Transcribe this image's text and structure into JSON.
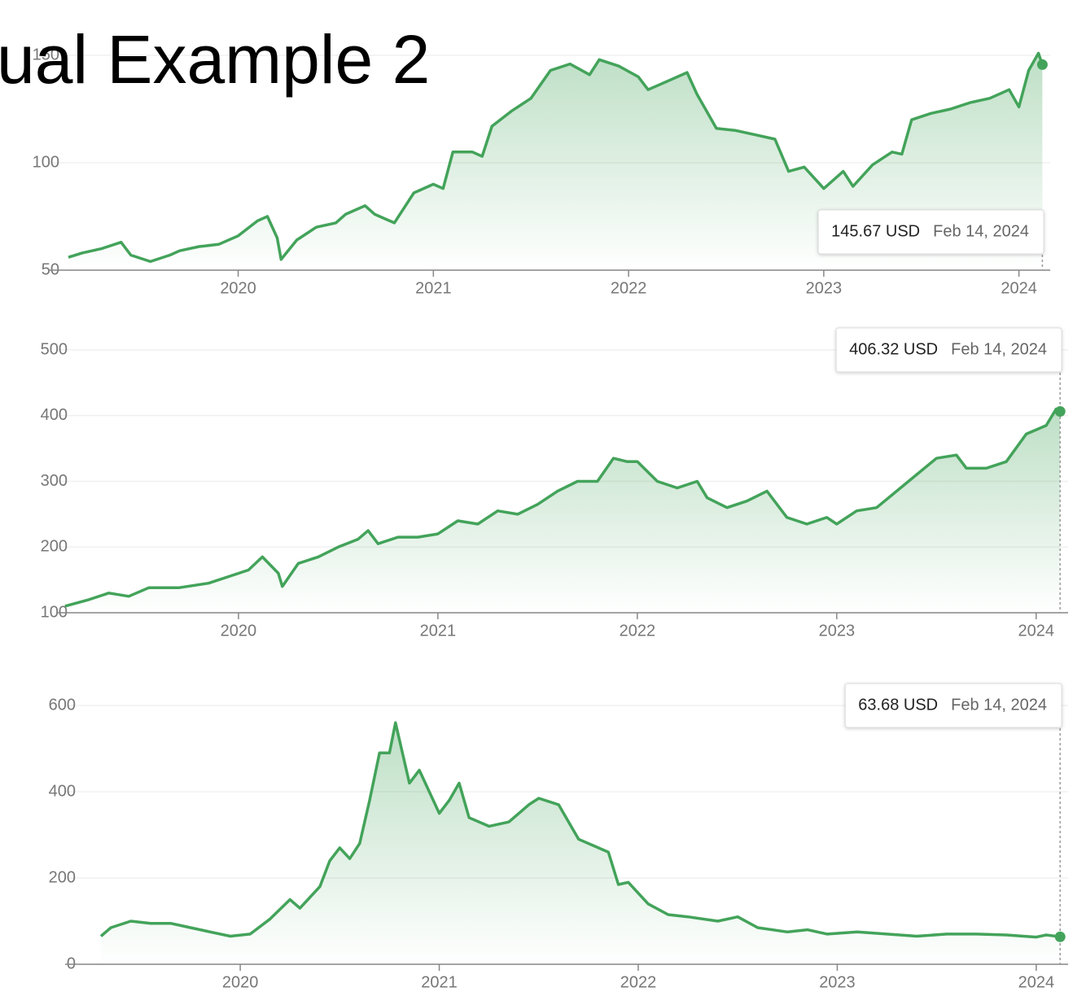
{
  "title": "ual Example 2",
  "chart_data": [
    {
      "type": "line",
      "color": "#43a35a",
      "grid": true,
      "x": [
        2019.13,
        2019.2,
        2019.3,
        2019.4,
        2019.45,
        2019.55,
        2019.65,
        2019.7,
        2019.8,
        2019.9,
        2020.0,
        2020.1,
        2020.15,
        2020.2,
        2020.22,
        2020.3,
        2020.4,
        2020.5,
        2020.55,
        2020.65,
        2020.7,
        2020.8,
        2020.9,
        2021.0,
        2021.05,
        2021.1,
        2021.2,
        2021.25,
        2021.3,
        2021.4,
        2021.5,
        2021.6,
        2021.7,
        2021.8,
        2021.85,
        2021.95,
        2022.05,
        2022.1,
        2022.2,
        2022.3,
        2022.35,
        2022.45,
        2022.55,
        2022.65,
        2022.75,
        2022.82,
        2022.9,
        2023.0,
        2023.1,
        2023.15,
        2023.25,
        2023.35,
        2023.4,
        2023.45,
        2023.55,
        2023.65,
        2023.75,
        2023.85,
        2023.95,
        2024.0,
        2024.05,
        2024.1,
        2024.12
      ],
      "values": [
        56,
        58,
        60,
        63,
        57,
        54,
        57,
        59,
        61,
        62,
        66,
        73,
        75,
        65,
        55,
        64,
        70,
        72,
        76,
        80,
        76,
        72,
        86,
        90,
        88,
        105,
        105,
        103,
        117,
        124,
        130,
        143,
        146,
        141,
        148,
        145,
        140,
        134,
        138,
        142,
        132,
        116,
        115,
        113,
        111,
        96,
        98,
        88,
        96,
        89,
        99,
        105,
        104,
        120,
        123,
        125,
        128,
        130,
        134,
        126,
        143,
        151,
        145.67
      ],
      "xlim": [
        2019.03,
        2024.16
      ],
      "xticks": [
        2020,
        2021,
        2022,
        2023,
        2024
      ],
      "ylim": [
        50,
        150
      ],
      "yticks": [
        50,
        100,
        150
      ],
      "annotation": {
        "label": "145.67 USD",
        "date": "Feb 14, 2024"
      }
    },
    {
      "type": "line",
      "color": "#43a35a",
      "grid": true,
      "x": [
        2019.13,
        2019.25,
        2019.35,
        2019.45,
        2019.55,
        2019.7,
        2019.85,
        2019.95,
        2020.05,
        2020.12,
        2020.2,
        2020.22,
        2020.3,
        2020.4,
        2020.5,
        2020.6,
        2020.65,
        2020.7,
        2020.8,
        2020.9,
        2021.0,
        2021.1,
        2021.2,
        2021.3,
        2021.4,
        2021.5,
        2021.6,
        2021.7,
        2021.8,
        2021.88,
        2021.95,
        2022.0,
        2022.1,
        2022.2,
        2022.3,
        2022.35,
        2022.45,
        2022.55,
        2022.65,
        2022.75,
        2022.85,
        2022.95,
        2023.0,
        2023.1,
        2023.2,
        2023.3,
        2023.4,
        2023.5,
        2023.6,
        2023.65,
        2023.75,
        2023.85,
        2023.95,
        2024.05,
        2024.1,
        2024.12
      ],
      "values": [
        110,
        120,
        130,
        125,
        138,
        138,
        145,
        155,
        165,
        185,
        160,
        140,
        175,
        185,
        200,
        212,
        225,
        205,
        215,
        215,
        220,
        240,
        235,
        255,
        250,
        265,
        285,
        300,
        300,
        335,
        330,
        330,
        300,
        290,
        300,
        275,
        260,
        270,
        285,
        245,
        235,
        245,
        235,
        255,
        260,
        285,
        310,
        335,
        340,
        320,
        320,
        330,
        372,
        385,
        410,
        406.32
      ],
      "xlim": [
        2019.09,
        2024.16
      ],
      "xticks": [
        2020,
        2021,
        2022,
        2023,
        2024
      ],
      "ylim": [
        100,
        500
      ],
      "yticks": [
        100,
        200,
        300,
        400,
        500
      ],
      "annotation": {
        "label": "406.32 USD",
        "date": "Feb 14, 2024"
      }
    },
    {
      "type": "line",
      "color": "#43a35a",
      "grid": true,
      "x": [
        2019.3,
        2019.35,
        2019.45,
        2019.55,
        2019.65,
        2019.75,
        2019.85,
        2019.95,
        2020.05,
        2020.15,
        2020.25,
        2020.3,
        2020.4,
        2020.45,
        2020.5,
        2020.55,
        2020.6,
        2020.65,
        2020.7,
        2020.75,
        2020.78,
        2020.85,
        2020.9,
        2021.0,
        2021.05,
        2021.1,
        2021.15,
        2021.25,
        2021.35,
        2021.45,
        2021.5,
        2021.6,
        2021.7,
        2021.8,
        2021.85,
        2021.9,
        2021.95,
        2022.05,
        2022.15,
        2022.25,
        2022.4,
        2022.5,
        2022.6,
        2022.75,
        2022.85,
        2022.95,
        2023.1,
        2023.25,
        2023.4,
        2023.55,
        2023.7,
        2023.85,
        2024.0,
        2024.05,
        2024.12
      ],
      "values": [
        65,
        85,
        100,
        95,
        95,
        85,
        75,
        65,
        70,
        105,
        150,
        130,
        180,
        240,
        270,
        245,
        280,
        380,
        490,
        490,
        560,
        420,
        450,
        350,
        380,
        420,
        340,
        320,
        330,
        370,
        385,
        370,
        290,
        270,
        260,
        185,
        190,
        140,
        115,
        110,
        100,
        110,
        85,
        75,
        80,
        70,
        75,
        70,
        65,
        70,
        70,
        68,
        63,
        68,
        63.68
      ],
      "xlim": [
        2019.12,
        2024.16
      ],
      "xticks": [
        2020,
        2021,
        2022,
        2023,
        2024
      ],
      "ylim": [
        0,
        600
      ],
      "yticks": [
        0,
        200,
        400,
        600
      ],
      "annotation": {
        "label": "63.68 USD",
        "date": "Feb 14, 2024"
      }
    }
  ]
}
